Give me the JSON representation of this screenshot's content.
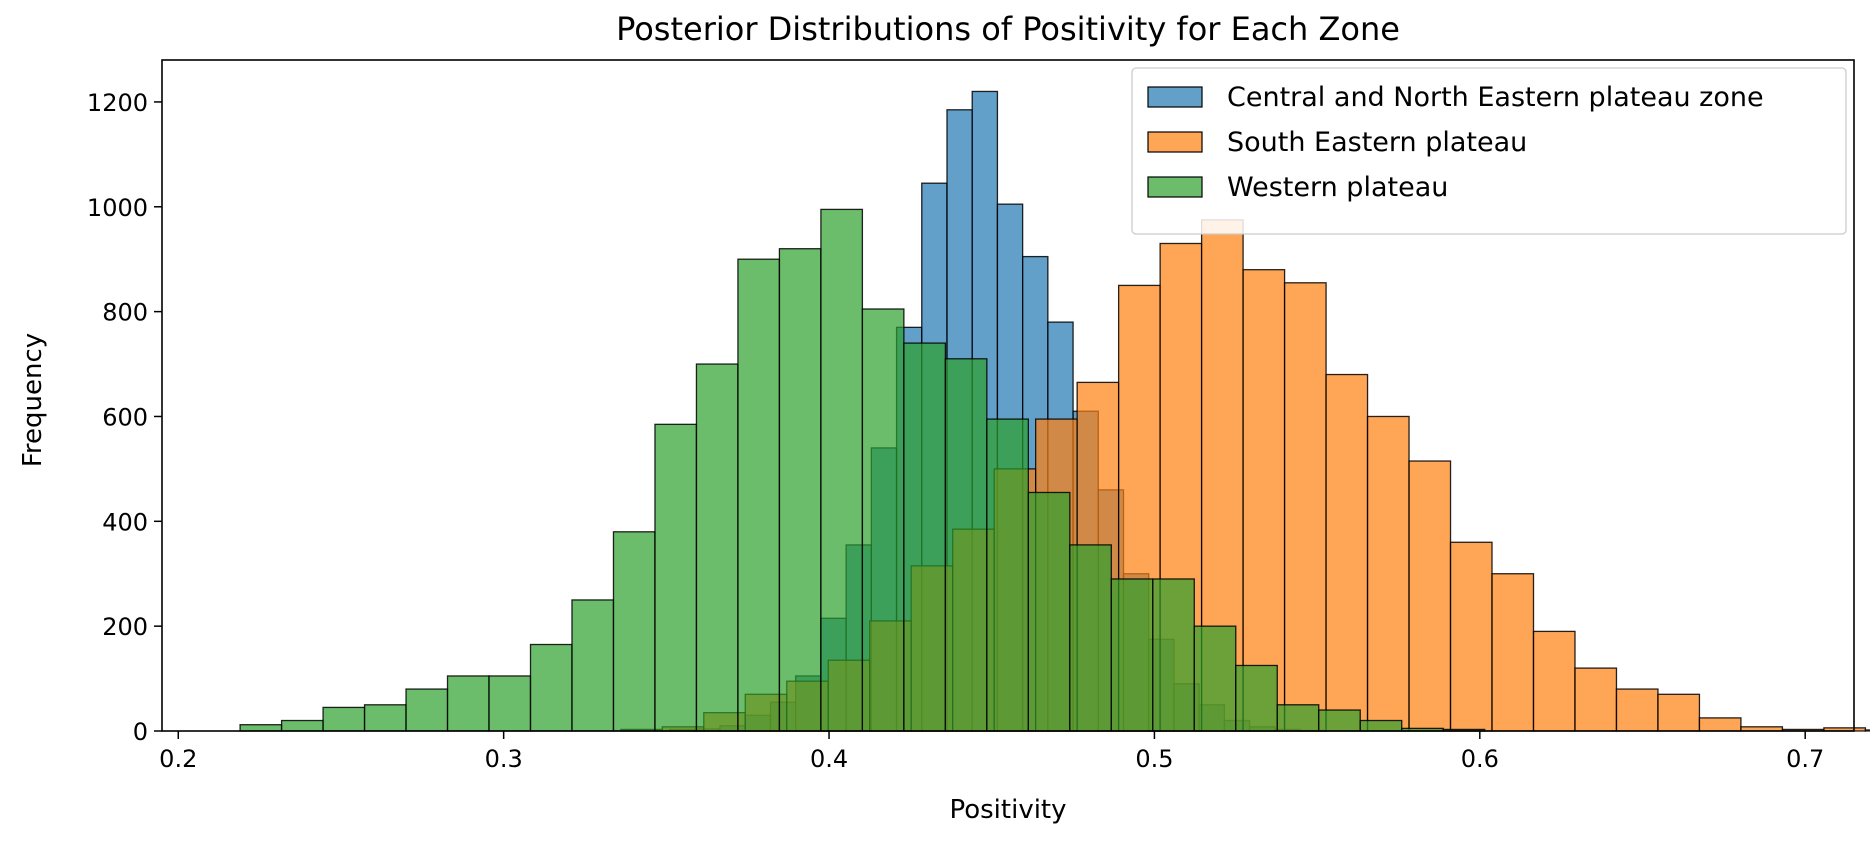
{
  "chart_data": {
    "type": "bar",
    "title": "Posterior Distributions of Positivity for Each Zone",
    "xlabel": "Positivity",
    "ylabel": "Frequency",
    "xlim": [
      0.195,
      0.715
    ],
    "ylim": [
      0,
      1280
    ],
    "x_ticks": [
      0.2,
      0.3,
      0.4,
      0.5,
      0.6,
      0.7
    ],
    "x_tick_labels": [
      "0.2",
      "0.3",
      "0.4",
      "0.5",
      "0.6",
      "0.7"
    ],
    "y_ticks": [
      0,
      200,
      400,
      600,
      800,
      1000,
      1200
    ],
    "y_tick_labels": [
      "0",
      "200",
      "400",
      "600",
      "800",
      "1000",
      "1200"
    ],
    "grid": false,
    "legend_position": "top-right",
    "series": [
      {
        "name": "Central and North Eastern plateau zone",
        "color": "#1f77b4",
        "alpha": 0.7,
        "bin_start": 0.351,
        "bin_width": 0.00775,
        "values": [
          3,
          4,
          10,
          30,
          55,
          105,
          215,
          355,
          540,
          770,
          1045,
          1185,
          1220,
          1005,
          905,
          780,
          610,
          460,
          300,
          175,
          90,
          50,
          20,
          8,
          3,
          1
        ]
      },
      {
        "name": "South Eastern plateau",
        "color": "#ff7f0e",
        "alpha": 0.7,
        "bin_start": 0.336,
        "bin_width": 0.01275,
        "values": [
          3,
          8,
          35,
          70,
          95,
          135,
          210,
          315,
          385,
          500,
          595,
          665,
          850,
          930,
          975,
          880,
          855,
          680,
          600,
          515,
          360,
          300,
          190,
          120,
          80,
          70,
          25,
          8,
          3,
          6,
          2
        ]
      },
      {
        "name": "Western plateau",
        "color": "#2ca02c",
        "alpha": 0.7,
        "bin_start": 0.219,
        "bin_width": 0.01275,
        "values": [
          12,
          20,
          45,
          50,
          80,
          105,
          105,
          165,
          250,
          380,
          585,
          700,
          900,
          920,
          995,
          805,
          740,
          710,
          595,
          455,
          355,
          290,
          290,
          200,
          125,
          50,
          40,
          20,
          5,
          3
        ]
      }
    ]
  }
}
